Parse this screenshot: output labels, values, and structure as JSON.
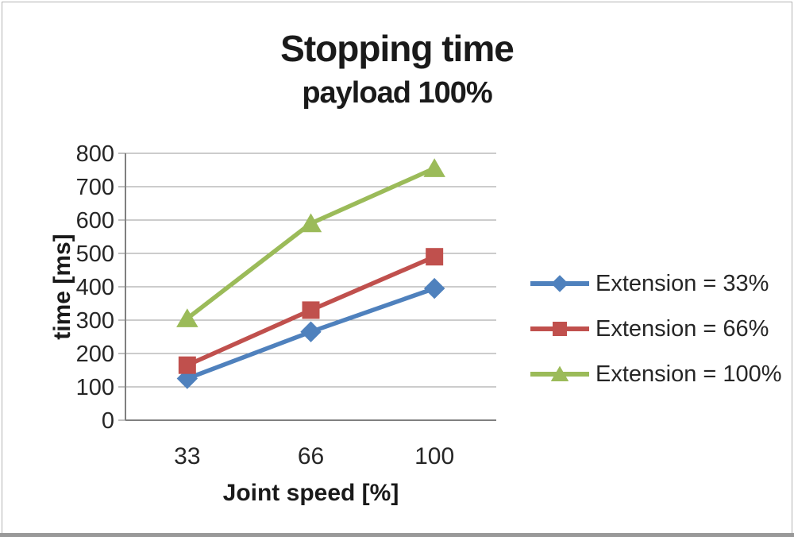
{
  "frame": {
    "background_color": "#ffffff",
    "border_color": "#b3b3b3",
    "bottom_bar_color": "#999999"
  },
  "chart_data": {
    "type": "line",
    "title": "Stopping time",
    "subtitle": "payload 100%",
    "categories": [
      "33",
      "66",
      "100"
    ],
    "series": [
      {
        "name": "Extension = 33%",
        "marker": "diamond",
        "color": "#4F81BD",
        "values": [
          125,
          265,
          395
        ]
      },
      {
        "name": "Extension = 66%",
        "marker": "square",
        "color": "#C0504D",
        "values": [
          165,
          330,
          490
        ]
      },
      {
        "name": "Extension = 100%",
        "marker": "triangle",
        "color": "#9BBB59",
        "values": [
          305,
          590,
          755
        ]
      }
    ],
    "xlabel": "Joint speed [%]",
    "ylabel": "time [ms]",
    "ylim": [
      0,
      800
    ],
    "yticks": [
      0,
      100,
      200,
      300,
      400,
      500,
      600,
      700,
      800
    ],
    "grid": "horizontal",
    "legend_position": "right",
    "gridline_color": "#9a9a9a",
    "axis_color": "#808080",
    "text_color": "#262626"
  }
}
